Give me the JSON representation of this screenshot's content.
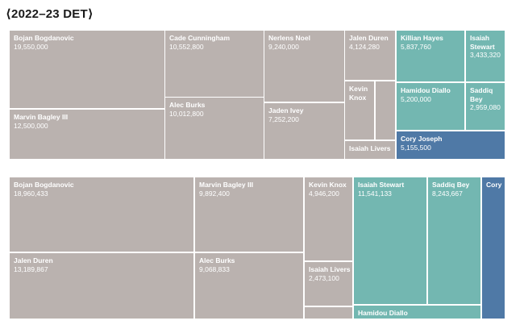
{
  "title": "⟨2022–23 DET⟩",
  "colors": {
    "gray": "#bab2af",
    "teal": "#73b7b1",
    "blue": "#4f79a6"
  },
  "chart_data": [
    {
      "type": "treemap",
      "cells": [
        {
          "name": "Bojan Bogdanovic",
          "value": "19,550,000",
          "color": "gray"
        },
        {
          "name": "Marvin Bagley III",
          "value": "12,500,000",
          "color": "gray"
        },
        {
          "name": "Cade Cunningham",
          "value": "10,552,800",
          "color": "gray"
        },
        {
          "name": "Alec Burks",
          "value": "10,012,800",
          "color": "gray"
        },
        {
          "name": "Nerlens Noel",
          "value": "9,240,000",
          "color": "gray"
        },
        {
          "name": "Jaden Ivey",
          "value": "7,252,200",
          "color": "gray"
        },
        {
          "name": "Jalen Duren",
          "value": "4,124,280",
          "color": "gray"
        },
        {
          "name": "Kevin\nKnox",
          "value": "",
          "color": "gray"
        },
        {
          "name": "",
          "value": "",
          "color": "gray"
        },
        {
          "name": "Isaiah Livers",
          "value": "",
          "color": "gray"
        },
        {
          "name": "Killian Hayes",
          "value": "5,837,760",
          "color": "teal"
        },
        {
          "name": "Isaiah\nStewart",
          "value": "3,433,320",
          "color": "teal"
        },
        {
          "name": "Hamidou Diallo",
          "value": "5,200,000",
          "color": "teal"
        },
        {
          "name": "Saddiq Bey",
          "value": "2,959,080",
          "color": "teal"
        },
        {
          "name": "Cory Joseph",
          "value": "5,155,500",
          "color": "blue"
        }
      ]
    },
    {
      "type": "treemap",
      "cells": [
        {
          "name": "Bojan Bogdanovic",
          "value": "18,960,433",
          "color": "gray"
        },
        {
          "name": "Jalen Duren",
          "value": "13,189,867",
          "color": "gray"
        },
        {
          "name": "Marvin Bagley III",
          "value": "9,892,400",
          "color": "gray"
        },
        {
          "name": "Alec Burks",
          "value": "9,068,833",
          "color": "gray"
        },
        {
          "name": "Kevin Knox",
          "value": "4,946,200",
          "color": "gray"
        },
        {
          "name": "Isaiah Livers",
          "value": "2,473,100",
          "color": "gray"
        },
        {
          "name": "",
          "value": "",
          "color": "gray"
        },
        {
          "name": "Isaiah Stewart",
          "value": "11,541,133",
          "color": "teal"
        },
        {
          "name": "Saddiq Bey",
          "value": "8,243,667",
          "color": "teal"
        },
        {
          "name": "Hamidou Diallo",
          "value": "",
          "color": "teal"
        },
        {
          "name": "Cory",
          "value": "",
          "color": "blue"
        }
      ]
    }
  ]
}
